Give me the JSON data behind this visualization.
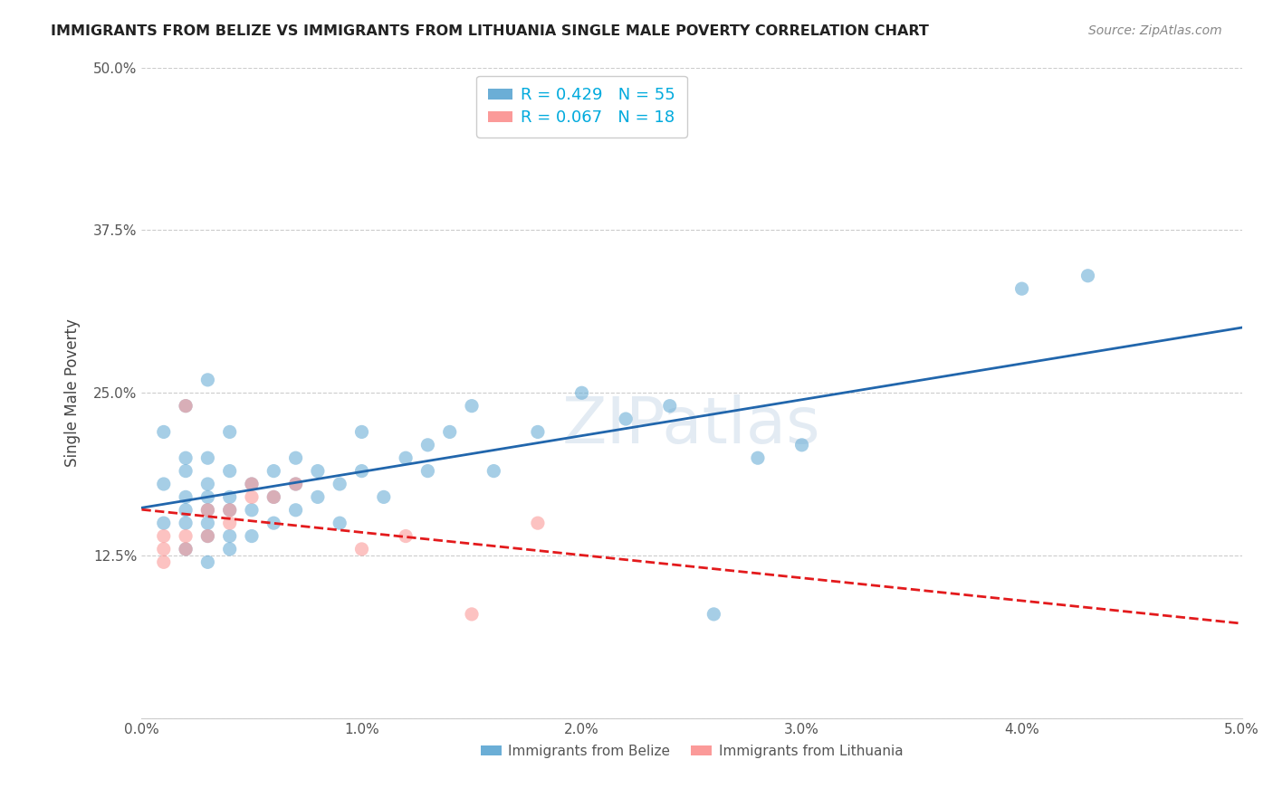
{
  "title": "IMMIGRANTS FROM BELIZE VS IMMIGRANTS FROM LITHUANIA SINGLE MALE POVERTY CORRELATION CHART",
  "source": "Source: ZipAtlas.com",
  "xlabel": "",
  "ylabel": "Single Male Poverty",
  "xlim": [
    0.0,
    0.05
  ],
  "ylim": [
    0.0,
    0.5
  ],
  "xticks": [
    0.0,
    0.01,
    0.02,
    0.03,
    0.04,
    0.05
  ],
  "xticklabels": [
    "0.0%",
    "1.0%",
    "2.0%",
    "3.0%",
    "4.0%",
    "5.0%"
  ],
  "yticks": [
    0.0,
    0.125,
    0.25,
    0.375,
    0.5
  ],
  "yticklabels": [
    "",
    "12.5%",
    "25.0%",
    "37.5%",
    "50.0%"
  ],
  "legend_belize": "R = 0.429   N = 55",
  "legend_lithuania": "R = 0.067   N = 18",
  "legend_label_belize": "Immigrants from Belize",
  "legend_label_lithuania": "Immigrants from Lithuania",
  "R_belize": 0.429,
  "N_belize": 55,
  "R_lithuania": 0.067,
  "N_lithuania": 18,
  "color_belize": "#6baed6",
  "color_lithuania": "#fb9a99",
  "line_color_belize": "#2166ac",
  "line_color_lithuania": "#e31a1c",
  "watermark": "ZIPatlas",
  "belize_x": [
    0.001,
    0.001,
    0.001,
    0.002,
    0.002,
    0.002,
    0.002,
    0.002,
    0.002,
    0.002,
    0.003,
    0.003,
    0.003,
    0.003,
    0.003,
    0.003,
    0.003,
    0.003,
    0.004,
    0.004,
    0.004,
    0.004,
    0.004,
    0.004,
    0.005,
    0.005,
    0.005,
    0.006,
    0.006,
    0.006,
    0.007,
    0.007,
    0.007,
    0.008,
    0.008,
    0.009,
    0.009,
    0.01,
    0.01,
    0.011,
    0.012,
    0.013,
    0.013,
    0.014,
    0.015,
    0.016,
    0.018,
    0.02,
    0.022,
    0.024,
    0.026,
    0.028,
    0.03,
    0.04,
    0.043
  ],
  "belize_y": [
    0.15,
    0.18,
    0.22,
    0.13,
    0.15,
    0.16,
    0.17,
    0.19,
    0.2,
    0.24,
    0.12,
    0.14,
    0.15,
    0.16,
    0.17,
    0.18,
    0.2,
    0.26,
    0.13,
    0.14,
    0.16,
    0.17,
    0.19,
    0.22,
    0.14,
    0.16,
    0.18,
    0.15,
    0.17,
    0.19,
    0.16,
    0.18,
    0.2,
    0.17,
    0.19,
    0.15,
    0.18,
    0.19,
    0.22,
    0.17,
    0.2,
    0.19,
    0.21,
    0.22,
    0.24,
    0.19,
    0.22,
    0.25,
    0.23,
    0.24,
    0.08,
    0.2,
    0.21,
    0.33,
    0.34
  ],
  "lithuania_x": [
    0.001,
    0.001,
    0.001,
    0.002,
    0.002,
    0.002,
    0.003,
    0.003,
    0.004,
    0.004,
    0.005,
    0.005,
    0.006,
    0.007,
    0.01,
    0.012,
    0.015,
    0.018
  ],
  "lithuania_y": [
    0.14,
    0.13,
    0.12,
    0.24,
    0.14,
    0.13,
    0.16,
    0.14,
    0.15,
    0.16,
    0.18,
    0.17,
    0.17,
    0.18,
    0.13,
    0.14,
    0.08,
    0.15
  ]
}
